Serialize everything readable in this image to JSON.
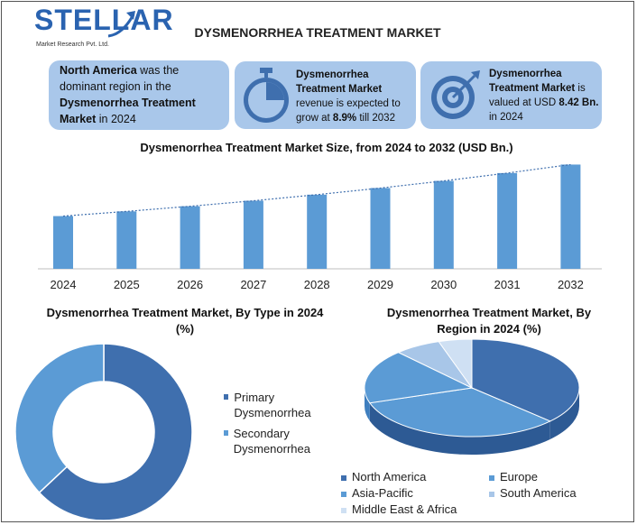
{
  "brand": {
    "name": "STELLAR",
    "sub": "Market Research Pvt. Ltd."
  },
  "title": "DYSMENORRHEA TREATMENT MARKET",
  "cards": {
    "c1": {
      "b1": "North America",
      "t1": " was the dominant region in the ",
      "b2": "Dysmenorrhea Treatment Market",
      "t2": " in 2024"
    },
    "c2": {
      "b1": "Dysmenorrhea Treatment Market",
      "t1": " revenue is expected to grow at ",
      "b2": "8.9%",
      "t2": " till 2032"
    },
    "c3": {
      "b1": "Dysmenorrhea Treatment Market",
      "t1": " is valued at USD ",
      "b2": "8.42 Bn.",
      "t2": " in 2024"
    }
  },
  "colors": {
    "bar": "#5b9bd5",
    "card": "#a9c7ea",
    "dark": "#3f6fae",
    "mid": "#5b9bd5",
    "light": "#a8c6e8",
    "vlight": "#cfe0f3"
  },
  "icons": {
    "c2": "stopwatch-icon",
    "c3": "target-icon"
  },
  "chart_data": [
    {
      "type": "bar",
      "title": "Dysmenorrhea Treatment Market Size, from 2024 to 2032 (USD Bn.)",
      "categories": [
        "2024",
        "2025",
        "2026",
        "2027",
        "2028",
        "2029",
        "2030",
        "2031",
        "2032"
      ],
      "values": [
        8.42,
        9.17,
        9.99,
        10.87,
        11.84,
        12.9,
        14.04,
        15.29,
        16.65
      ],
      "ylim": [
        0,
        17
      ],
      "grid": false,
      "trendline": true
    },
    {
      "type": "pie",
      "title": "Dysmenorrhea Treatment Market, By Type in 2024 (%)",
      "labels": [
        "Primary Dysmenorrhea",
        "Secondary Dysmenorrhea"
      ],
      "values": [
        63,
        37
      ],
      "donut": true,
      "legend": "right"
    },
    {
      "type": "pie",
      "title": "Dysmenorrhea Treatment Market, By Region in 2024 (%)",
      "labels": [
        "North America",
        "Europe",
        "Asia-Pacific",
        "South America",
        "Middle East & Africa"
      ],
      "values": [
        37,
        33,
        18,
        7,
        5
      ],
      "legend": "bottom"
    }
  ]
}
